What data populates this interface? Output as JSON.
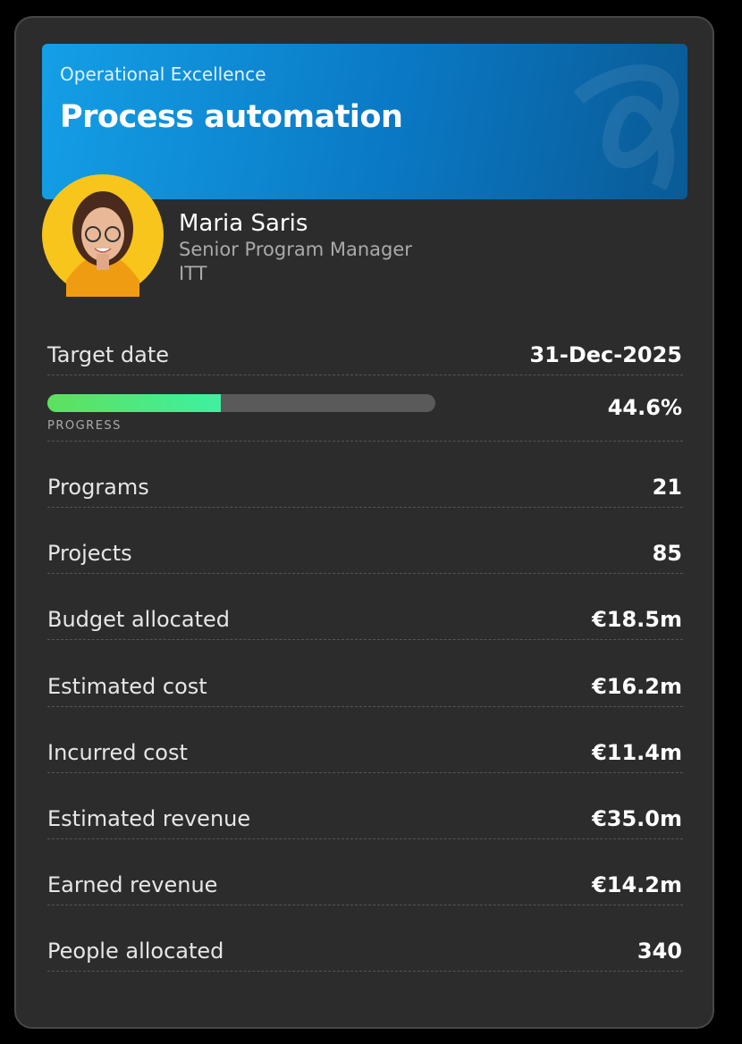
{
  "header": {
    "category": "Operational Excellence",
    "title": "Process automation"
  },
  "person": {
    "name": "Maria Saris",
    "role": "Senior Program Manager",
    "org": "ITT"
  },
  "target": {
    "label": "Target date",
    "value": "31-Dec-2025"
  },
  "progress": {
    "label": "PROGRESS",
    "value": 44.6,
    "value_label": "44.6%",
    "lim": [
      0,
      100
    ]
  },
  "rows": [
    {
      "label": "Programs",
      "value": "21"
    },
    {
      "label": "Projects",
      "value": "85"
    },
    {
      "label": "Budget allocated",
      "value": "€18.5m"
    },
    {
      "label": "Estimated cost",
      "value": "€16.2m"
    },
    {
      "label": "Incurred cost",
      "value": "€11.4m"
    },
    {
      "label": "Estimated revenue",
      "value": "€35.0m"
    },
    {
      "label": "Earned revenue",
      "value": "€14.2m"
    },
    {
      "label": "People allocated",
      "value": "340"
    }
  ]
}
